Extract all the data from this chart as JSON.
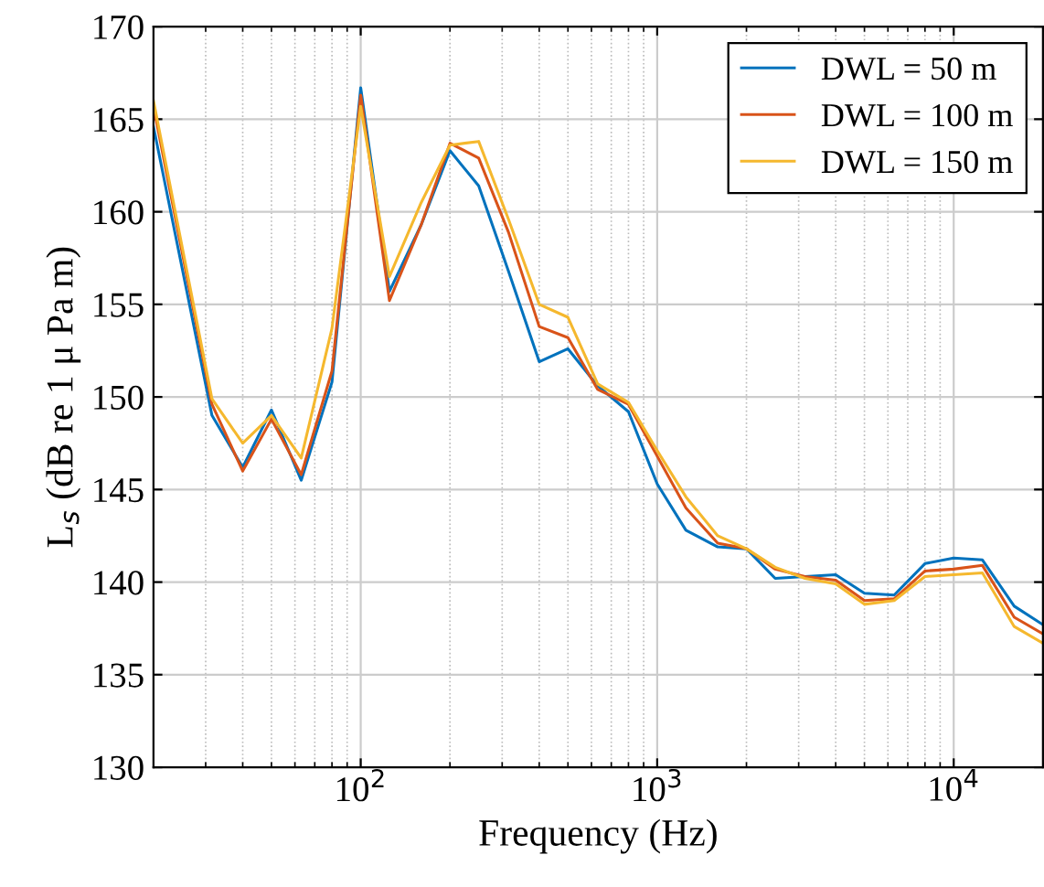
{
  "chart_data": {
    "type": "line",
    "xlabel": "Frequency (Hz)",
    "ylabel": "L$_{s}$ (dB re 1 μ Pa m)",
    "log": "x",
    "xlim": [
      20,
      20000
    ],
    "xticks": [
      {
        "value": 100,
        "label": "10$^{2}$"
      },
      {
        "value": 1000,
        "label": "10$^{3}$"
      },
      {
        "value": 10000,
        "label": "10$^{4}$"
      }
    ],
    "ylim": [
      130,
      170
    ],
    "yticks": [
      130,
      135,
      140,
      145,
      150,
      155,
      160,
      165,
      170
    ],
    "grid": true,
    "legend": "top right",
    "marker": "none",
    "line_style": "solid",
    "x": [
      20,
      31.5,
      40,
      50,
      63,
      80,
      100,
      125,
      160,
      200,
      250,
      315,
      400,
      500,
      630,
      800,
      1000,
      1250,
      1600,
      2000,
      2500,
      3150,
      4000,
      5000,
      6300,
      8000,
      10000,
      12500,
      16000,
      20000
    ],
    "series": [
      {
        "name": "DWL = 50 m",
        "color": "#0072bd",
        "values": [
          164.6,
          149.0,
          146.2,
          149.3,
          145.5,
          150.8,
          166.7,
          155.7,
          159.3,
          163.3,
          161.4,
          156.8,
          151.9,
          152.6,
          150.6,
          149.2,
          145.3,
          142.8,
          141.9,
          141.8,
          140.2,
          140.3,
          140.4,
          139.4,
          139.3,
          141.0,
          141.3,
          141.2,
          138.7,
          137.7
        ]
      },
      {
        "name": "DWL = 100 m",
        "color": "#d95319",
        "values": [
          165.7,
          149.6,
          146.0,
          148.8,
          145.8,
          151.4,
          166.3,
          155.2,
          159.3,
          163.7,
          162.9,
          158.9,
          153.8,
          153.2,
          150.4,
          149.6,
          146.8,
          144.0,
          142.1,
          141.8,
          140.7,
          140.3,
          140.1,
          139.0,
          139.1,
          140.6,
          140.7,
          140.9,
          138.1,
          137.2
        ]
      },
      {
        "name": "DWL = 150 m",
        "color": "#f5b82e",
        "values": [
          166.0,
          149.9,
          147.5,
          149.0,
          146.7,
          153.7,
          165.7,
          156.5,
          160.5,
          163.6,
          163.8,
          159.6,
          155.0,
          154.3,
          150.7,
          149.7,
          147.1,
          144.6,
          142.5,
          141.8,
          140.8,
          140.2,
          139.9,
          138.8,
          139.0,
          140.3,
          140.4,
          140.5,
          137.6,
          136.7
        ]
      }
    ]
  }
}
